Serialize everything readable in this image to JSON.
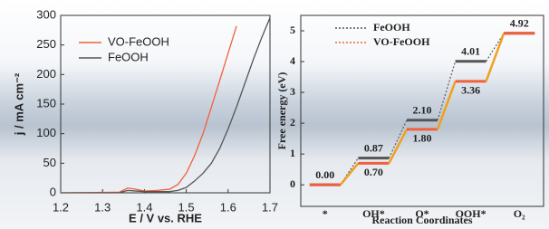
{
  "chart_data": [
    {
      "type": "line",
      "xlabel": "E / V vs. RHE",
      "ylabel": "j / mA cm⁻²",
      "x": [
        1.2,
        1.34,
        1.36,
        1.38,
        1.4,
        1.43,
        1.46,
        1.48,
        1.5,
        1.52,
        1.54,
        1.56,
        1.58,
        1.6,
        1.62,
        1.64,
        1.66,
        1.68,
        1.7
      ],
      "series": [
        {
          "name": "VO-FeOOH",
          "color": "#f0603c",
          "values": [
            0,
            1,
            8,
            6,
            3,
            4,
            6,
            14,
            33,
            63,
            100,
            145,
            190,
            236,
            282,
            null,
            null,
            null,
            null
          ]
        },
        {
          "name": "FeOOH",
          "color": "#555555",
          "values": [
            0,
            0,
            4,
            3,
            2,
            2,
            2,
            4,
            9,
            20,
            33,
            50,
            75,
            108,
            145,
            185,
            225,
            262,
            296
          ]
        }
      ],
      "xlim": [
        1.2,
        1.7
      ],
      "xticks": [
        1.2,
        1.3,
        1.4,
        1.5,
        1.6,
        1.7
      ],
      "ylim": [
        0,
        300
      ],
      "yticks": [
        0,
        50,
        100,
        150,
        200,
        250,
        300
      ],
      "legend": "upper left"
    },
    {
      "type": "energy",
      "xlabel": "Reaction Coordinates",
      "ylabel": "Free energy (eV)",
      "categories": [
        "*",
        "OH*",
        "O*",
        "OOH*",
        "O₂"
      ],
      "series": [
        {
          "name": "FeOOH",
          "color": "#555555",
          "values": [
            0,
            0.87,
            2.1,
            4.01,
            4.92
          ],
          "value_labels": [
            "0.00",
            "0.87",
            "2.10",
            "4.01",
            "4.92"
          ]
        },
        {
          "name": "VO-FeOOH",
          "color": "#f0603c",
          "values": [
            0,
            0.7,
            1.8,
            3.36,
            4.92
          ],
          "value_labels": [
            null,
            "0.70",
            "1.80",
            "3.36",
            null
          ]
        }
      ],
      "shared_label_color": "#3355cc",
      "ylim": [
        -0.7,
        5.5
      ],
      "yticks": [
        0,
        1,
        2,
        3,
        4,
        5
      ],
      "legend": "upper left"
    }
  ]
}
